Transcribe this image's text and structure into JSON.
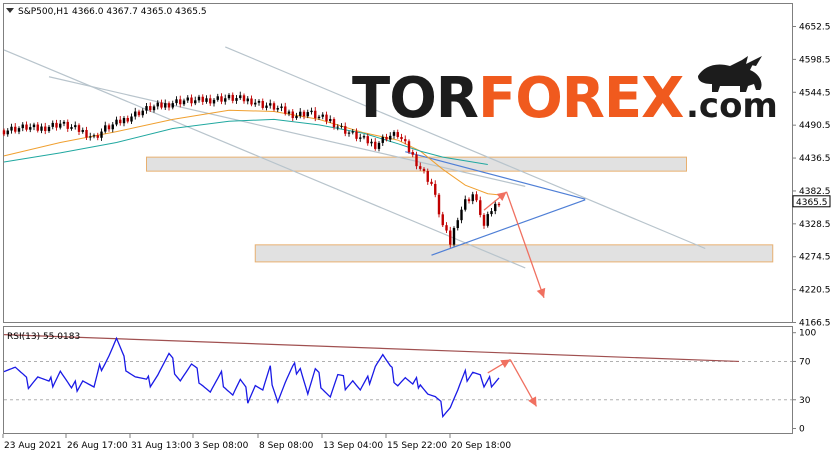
{
  "chart_data": {
    "type": "candlestick",
    "header": {
      "symbol_text": "S&P500,H1",
      "ohlc_text": "4366.0 4367.7 4365.0 4365.5"
    },
    "price_axis": {
      "ticks": [
        "4652.5",
        "4598.5",
        "4544.5",
        "4490.5",
        "4436.5",
        "4382.5",
        "4328.5",
        "4274.5",
        "4220.5",
        "4166.5"
      ],
      "range": [
        4157,
        4668
      ],
      "current_price_label": "4365.5"
    },
    "time_axis": {
      "labels": [
        "23 Aug 2021",
        "26 Aug 17:00",
        "31 Aug 13:00",
        "3 Sep 08:00",
        "8 Sep 08:00",
        "13 Sep 04:00",
        "15 Sep 22:00",
        "20 Sep 18:00"
      ]
    },
    "price_series": [
      {
        "x": 0,
        "close": 4482
      },
      {
        "x": 3,
        "close": 4485
      },
      {
        "x": 6,
        "close": 4487
      },
      {
        "x": 9,
        "close": 4484
      },
      {
        "x": 12,
        "close": 4489
      },
      {
        "x": 15,
        "close": 4493
      },
      {
        "x": 18,
        "close": 4486
      },
      {
        "x": 21,
        "close": 4480
      },
      {
        "x": 24,
        "close": 4470
      },
      {
        "x": 27,
        "close": 4485
      },
      {
        "x": 30,
        "close": 4493
      },
      {
        "x": 33,
        "close": 4503
      },
      {
        "x": 36,
        "close": 4512
      },
      {
        "x": 39,
        "close": 4519
      },
      {
        "x": 42,
        "close": 4522
      },
      {
        "x": 45,
        "close": 4528
      },
      {
        "x": 48,
        "close": 4531
      },
      {
        "x": 51,
        "close": 4530
      },
      {
        "x": 54,
        "close": 4532
      },
      {
        "x": 57,
        "close": 4534
      },
      {
        "x": 60,
        "close": 4535
      },
      {
        "x": 63,
        "close": 4533
      },
      {
        "x": 66,
        "close": 4531
      },
      {
        "x": 69,
        "close": 4524
      },
      {
        "x": 72,
        "close": 4520
      },
      {
        "x": 75,
        "close": 4512
      },
      {
        "x": 78,
        "close": 4507
      },
      {
        "x": 81,
        "close": 4512
      },
      {
        "x": 84,
        "close": 4503
      },
      {
        "x": 87,
        "close": 4498
      },
      {
        "x": 90,
        "close": 4485
      },
      {
        "x": 93,
        "close": 4475
      },
      {
        "x": 96,
        "close": 4466
      },
      {
        "x": 99,
        "close": 4458
      },
      {
        "x": 102,
        "close": 4472
      },
      {
        "x": 105,
        "close": 4475
      },
      {
        "x": 108,
        "close": 4449
      },
      {
        "x": 111,
        "close": 4420
      },
      {
        "x": 114,
        "close": 4394
      },
      {
        "x": 117,
        "close": 4325
      },
      {
        "x": 119,
        "close": 4297
      },
      {
        "x": 121,
        "close": 4341
      },
      {
        "x": 123,
        "close": 4365
      },
      {
        "x": 125,
        "close": 4377
      },
      {
        "x": 127,
        "close": 4347
      },
      {
        "x": 128,
        "close": 4324
      },
      {
        "x": 130,
        "close": 4352
      },
      {
        "x": 132,
        "close": 4365.5
      }
    ],
    "moving_averages": [
      {
        "color": "#f0a030",
        "points": [
          [
            0,
            4440
          ],
          [
            15,
            4462
          ],
          [
            30,
            4480
          ],
          [
            45,
            4500
          ],
          [
            60,
            4515
          ],
          [
            72,
            4513
          ],
          [
            84,
            4500
          ],
          [
            96,
            4478
          ],
          [
            105,
            4466
          ],
          [
            111,
            4448
          ],
          [
            117,
            4418
          ],
          [
            123,
            4392
          ],
          [
            129,
            4378
          ],
          [
            132,
            4376
          ]
        ]
      },
      {
        "color": "#20a8a0",
        "points": [
          [
            0,
            4430
          ],
          [
            15,
            4445
          ],
          [
            30,
            4462
          ],
          [
            45,
            4485
          ],
          [
            60,
            4497
          ],
          [
            72,
            4500
          ],
          [
            84,
            4491
          ],
          [
            96,
            4477
          ],
          [
            105,
            4460
          ],
          [
            111,
            4448
          ],
          [
            117,
            4438
          ],
          [
            129,
            4426
          ]
        ]
      }
    ],
    "support_zones": [
      {
        "x": [
          38,
          182
        ],
        "price": [
          4415,
          4438
        ]
      },
      {
        "x": [
          67,
          205
        ],
        "price": [
          4266,
          4294
        ]
      }
    ],
    "trend_lines": [
      {
        "color": "#b8c4cc",
        "points": [
          [
            12,
            4570
          ],
          [
            139,
            4390
          ]
        ]
      },
      {
        "color": "#b8c4cc",
        "points": [
          [
            59,
            4619
          ],
          [
            187,
            4288
          ]
        ]
      },
      {
        "color": "#b8c4cc",
        "points": [
          [
            0,
            4614
          ],
          [
            139,
            4256
          ]
        ]
      },
      {
        "color": "#4f7fd6",
        "points": [
          [
            107,
            4447
          ],
          [
            155,
            4369
          ]
        ]
      },
      {
        "color": "#4f7fd6",
        "points": [
          [
            114,
            4277
          ],
          [
            155,
            4368
          ]
        ]
      }
    ],
    "forecast_arrows": [
      {
        "color": "#f07060",
        "points": [
          [
            128,
            4351
          ],
          [
            134,
            4381
          ]
        ]
      },
      {
        "color": "#f07060",
        "points": [
          [
            134,
            4381
          ],
          [
            144,
            4207
          ]
        ]
      }
    ],
    "rsi": {
      "label": "RSI(13) 55.0183",
      "ticks": [
        "100",
        "70",
        "30",
        "0"
      ],
      "range": [
        0,
        100
      ],
      "levels": [
        70,
        30
      ],
      "color": "#1a1ae6",
      "values": [
        {
          "x": 0,
          "v": 66
        },
        {
          "x": 3,
          "v": 64
        },
        {
          "x": 6,
          "v": 47
        },
        {
          "x": 9,
          "v": 55
        },
        {
          "x": 12,
          "v": 44
        },
        {
          "x": 15,
          "v": 62
        },
        {
          "x": 18,
          "v": 38
        },
        {
          "x": 21,
          "v": 53
        },
        {
          "x": 24,
          "v": 40
        },
        {
          "x": 26,
          "v": 67
        },
        {
          "x": 28,
          "v": 78
        },
        {
          "x": 30,
          "v": 92
        },
        {
          "x": 32,
          "v": 69
        },
        {
          "x": 35,
          "v": 55
        },
        {
          "x": 38,
          "v": 46
        },
        {
          "x": 41,
          "v": 58
        },
        {
          "x": 44,
          "v": 74
        },
        {
          "x": 47,
          "v": 53
        },
        {
          "x": 50,
          "v": 64
        },
        {
          "x": 53,
          "v": 49
        },
        {
          "x": 55,
          "v": 38
        },
        {
          "x": 58,
          "v": 53
        },
        {
          "x": 61,
          "v": 36
        },
        {
          "x": 63,
          "v": 48
        },
        {
          "x": 65,
          "v": 33
        },
        {
          "x": 67,
          "v": 47
        },
        {
          "x": 69,
          "v": 38
        },
        {
          "x": 71,
          "v": 59
        },
        {
          "x": 73,
          "v": 31
        },
        {
          "x": 75,
          "v": 47
        },
        {
          "x": 77,
          "v": 60
        },
        {
          "x": 79,
          "v": 67
        },
        {
          "x": 81,
          "v": 36
        },
        {
          "x": 83,
          "v": 58
        },
        {
          "x": 85,
          "v": 46
        },
        {
          "x": 87,
          "v": 34
        },
        {
          "x": 89,
          "v": 53
        },
        {
          "x": 91,
          "v": 47
        },
        {
          "x": 93,
          "v": 52
        },
        {
          "x": 95,
          "v": 38
        },
        {
          "x": 97,
          "v": 48
        },
        {
          "x": 99,
          "v": 68
        },
        {
          "x": 101,
          "v": 76
        },
        {
          "x": 103,
          "v": 60
        },
        {
          "x": 105,
          "v": 49
        },
        {
          "x": 107,
          "v": 53
        },
        {
          "x": 109,
          "v": 42
        },
        {
          "x": 111,
          "v": 51
        },
        {
          "x": 113,
          "v": 37
        },
        {
          "x": 115,
          "v": 30
        },
        {
          "x": 117,
          "v": 19
        },
        {
          "x": 119,
          "v": 24
        },
        {
          "x": 121,
          "v": 38
        },
        {
          "x": 123,
          "v": 54
        },
        {
          "x": 125,
          "v": 62
        },
        {
          "x": 127,
          "v": 55
        },
        {
          "x": 128,
          "v": 40
        },
        {
          "x": 130,
          "v": 50
        },
        {
          "x": 132,
          "v": 55
        }
      ],
      "trend_line": {
        "color": "#a05050",
        "points": [
          [
            0,
            98
          ],
          [
            196,
            70
          ]
        ]
      },
      "forecast_arrows": [
        {
          "color": "#f07060",
          "points": [
            [
              129,
              58
            ],
            [
              135,
              72
            ]
          ]
        },
        {
          "color": "#f07060",
          "points": [
            [
              135,
              72
            ],
            [
              142,
              23
            ]
          ]
        }
      ]
    }
  },
  "watermark": {
    "text_dark": "TOR",
    "text_orange": "FOREX",
    "text_suffix": ".com",
    "color_dark": "#1c1c1c",
    "color_orange": "#f05a1e"
  }
}
